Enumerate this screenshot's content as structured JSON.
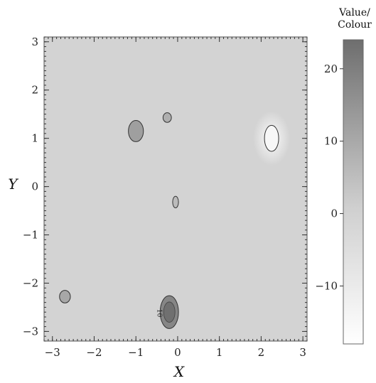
{
  "chart_data": {
    "type": "heatmap",
    "title": "",
    "xlabel": "X",
    "ylabel": "Y",
    "xlim": [
      -3.2,
      3.1
    ],
    "ylim": [
      -3.2,
      3.1
    ],
    "x_ticks": [
      -3,
      -2,
      -1,
      0,
      1,
      2,
      3
    ],
    "y_ticks": [
      -3,
      -2,
      -1,
      0,
      1,
      2,
      3
    ],
    "grid": false,
    "background_value": 0,
    "colorbar": {
      "title_lines": [
        "Value/",
        "Colour"
      ],
      "range": [
        -18,
        24
      ],
      "ticks": [
        20,
        10,
        0,
        -10
      ],
      "color_high": "#6e6e6e",
      "color_low": "#ffffff",
      "color_zero": "#cfcfcf"
    },
    "features": [
      {
        "x": -1.0,
        "y": 1.15,
        "rx": 0.18,
        "ry": 0.22,
        "value": 12
      },
      {
        "x": -0.25,
        "y": 1.43,
        "rx": 0.1,
        "ry": 0.1,
        "value": 8
      },
      {
        "x": 2.25,
        "y": 1.0,
        "rx": 0.17,
        "ry": 0.27,
        "value": -15
      },
      {
        "x": -0.05,
        "y": -0.32,
        "rx": 0.07,
        "ry": 0.12,
        "value": 5
      },
      {
        "x": -2.7,
        "y": -2.28,
        "rx": 0.13,
        "ry": 0.13,
        "value": 10
      },
      {
        "x": -0.2,
        "y": -2.6,
        "rx": 0.22,
        "ry": 0.34,
        "value": 18
      }
    ],
    "contour_labels": [
      {
        "text": "10",
        "x": -0.48,
        "y": -2.62,
        "rotation": 90
      }
    ]
  }
}
